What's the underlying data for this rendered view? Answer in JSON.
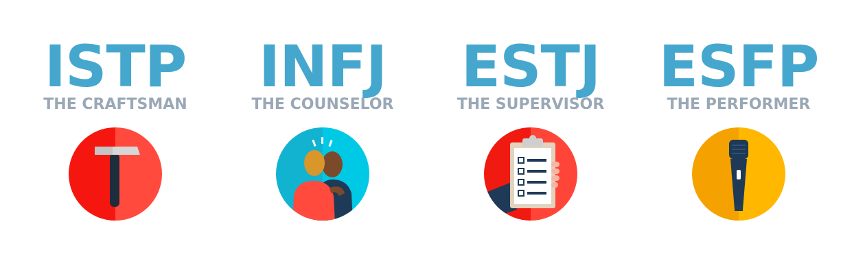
{
  "types": [
    {
      "code": "ISTP",
      "nickname": "THE CRAFTSMAN",
      "icon": "hammer-icon",
      "colors": {
        "left": "#f5170f",
        "right": "#ff4a3d"
      }
    },
    {
      "code": "INFJ",
      "nickname": "THE COUNSELOR",
      "icon": "two-people-icon",
      "colors": {
        "left": "#12b3d1",
        "right": "#00c9e6"
      }
    },
    {
      "code": "ESTJ",
      "nickname": "THE SUPERVISOR",
      "icon": "clipboard-checklist-icon",
      "colors": {
        "left": "#f01a10",
        "right": "#ff4538"
      }
    },
    {
      "code": "ESFP",
      "nickname": "THE PERFORMER",
      "icon": "microphone-icon",
      "colors": {
        "left": "#f5a200",
        "right": "#ffb700"
      }
    }
  ],
  "colors": {
    "code_text": "#45a7cd",
    "nickname_text": "#9aa8b6"
  }
}
